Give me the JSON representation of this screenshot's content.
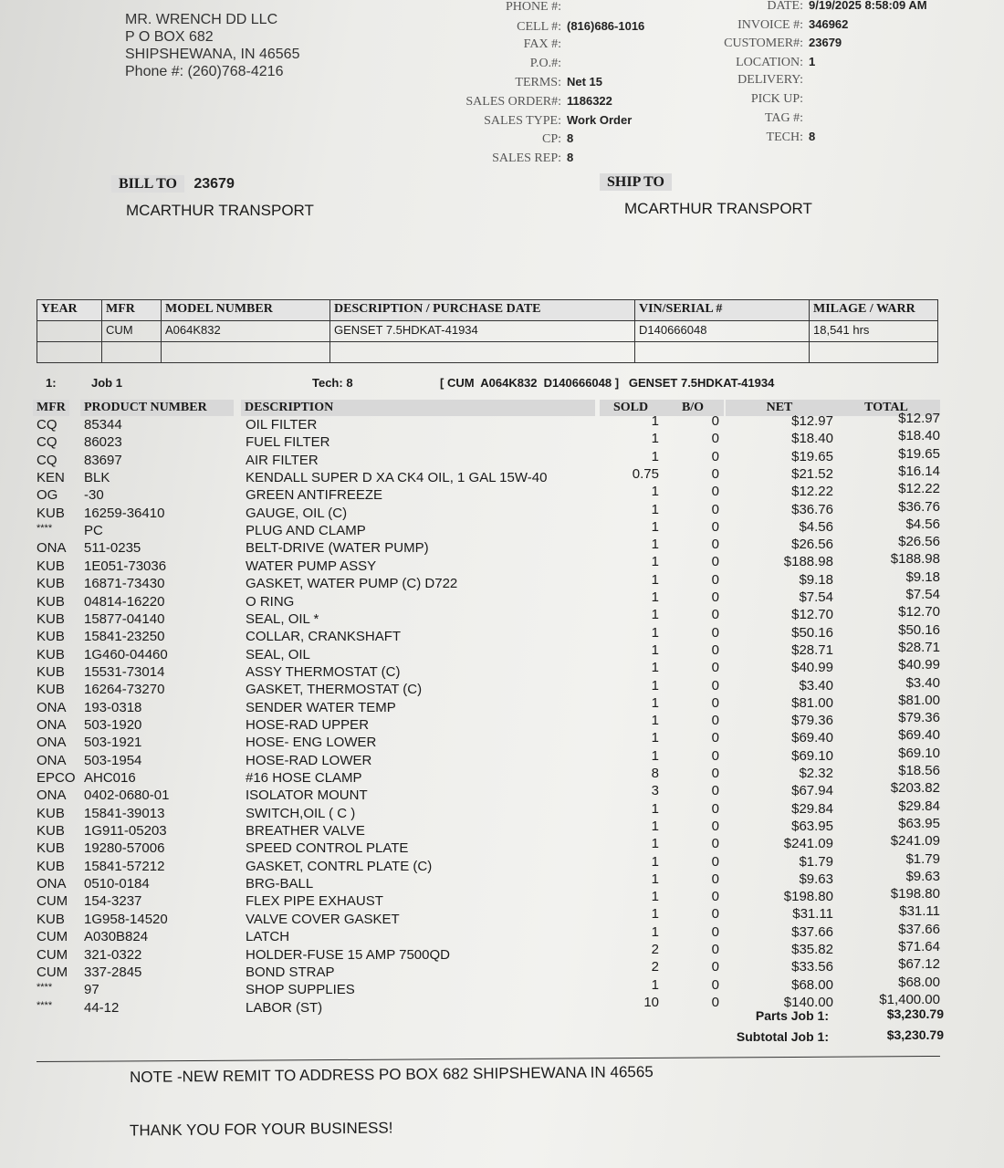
{
  "company": {
    "name": "MR. WRENCH DD LLC",
    "address1": "P O BOX 682",
    "address2": "SHIPSHEWANA, IN 46565",
    "phone": "Phone #: (260)768-4216"
  },
  "header_mid": [
    {
      "label": "PHONE #:",
      "value": ""
    },
    {
      "label": "CELL #:",
      "value": "(816)686-1016"
    },
    {
      "label": "FAX #:",
      "value": ""
    },
    {
      "label": "P.O.#:",
      "value": ""
    },
    {
      "label": "TERMS:",
      "value": "Net 15"
    },
    {
      "label": "SALES ORDER#:",
      "value": "1186322"
    },
    {
      "label": "SALES TYPE:",
      "value": "Work Order"
    },
    {
      "label": "CP:",
      "value": "8"
    },
    {
      "label": "SALES REP:",
      "value": "8"
    }
  ],
  "header_right": [
    {
      "label": "DATE:",
      "value": "9/19/2025 8:58:09 AM"
    },
    {
      "label": "INVOICE #:",
      "value": "346962"
    },
    {
      "label": "CUSTOMER#:",
      "value": "23679"
    },
    {
      "label": "LOCATION:",
      "value": "1"
    },
    {
      "label": "DELIVERY:",
      "value": ""
    },
    {
      "label": "PICK UP:",
      "value": ""
    },
    {
      "label": "TAG #:",
      "value": ""
    },
    {
      "label": "TECH:",
      "value": "8"
    }
  ],
  "bill_to": {
    "label": "BILL TO",
    "number": "23679",
    "name": "MCARTHUR TRANSPORT"
  },
  "ship_to": {
    "label": "SHIP TO",
    "name": "MCARTHUR TRANSPORT"
  },
  "unit_table": {
    "headers": [
      "YEAR",
      "MFR",
      "MODEL NUMBER",
      "DESCRIPTION / PURCHASE DATE",
      "VIN/SERIAL #",
      "MILAGE / WARR"
    ],
    "row": [
      "",
      "CUM",
      "A064K832",
      "GENSET 7.5HDKAT-41934",
      "D140666048",
      "18,541 hrs"
    ]
  },
  "job": {
    "num": "1:",
    "name": "Job 1",
    "tech": "Tech: 8",
    "unit": "[ CUM  A064K832  D140666048 ]   GENSET 7.5HDKAT-41934"
  },
  "columns": [
    "MFR",
    "PRODUCT NUMBER",
    "DESCRIPTION",
    "SOLD",
    "B/O",
    "NET",
    "TOTAL"
  ],
  "items": [
    {
      "mfr": "CQ",
      "part": "85344",
      "desc": "OIL FILTER",
      "sold": "1",
      "bo": "0",
      "net": "$12.97",
      "total": "$12.97"
    },
    {
      "mfr": "CQ",
      "part": "86023",
      "desc": "FUEL FILTER",
      "sold": "1",
      "bo": "0",
      "net": "$18.40",
      "total": "$18.40"
    },
    {
      "mfr": "CQ",
      "part": "83697",
      "desc": "AIR FILTER",
      "sold": "1",
      "bo": "0",
      "net": "$19.65",
      "total": "$19.65"
    },
    {
      "mfr": "KEN",
      "part": "BLK",
      "desc": "KENDALL SUPER D XA CK4 OIL, 1 GAL 15W-40",
      "sold": "0.75",
      "bo": "0",
      "net": "$21.52",
      "total": "$16.14"
    },
    {
      "mfr": "OG",
      "part": "-30",
      "desc": "GREEN ANTIFREEZE",
      "sold": "1",
      "bo": "0",
      "net": "$12.22",
      "total": "$12.22"
    },
    {
      "mfr": "KUB",
      "part": "16259-36410",
      "desc": "GAUGE, OIL (C)",
      "sold": "1",
      "bo": "0",
      "net": "$36.76",
      "total": "$36.76"
    },
    {
      "mfr": "****",
      "part": "PC",
      "desc": "PLUG AND CLAMP",
      "sold": "1",
      "bo": "0",
      "net": "$4.56",
      "total": "$4.56"
    },
    {
      "mfr": "ONA",
      "part": "511-0235",
      "desc": "BELT-DRIVE (WATER PUMP)",
      "sold": "1",
      "bo": "0",
      "net": "$26.56",
      "total": "$26.56"
    },
    {
      "mfr": "KUB",
      "part": "1E051-73036",
      "desc": "WATER PUMP ASSY",
      "sold": "1",
      "bo": "0",
      "net": "$188.98",
      "total": "$188.98"
    },
    {
      "mfr": "KUB",
      "part": "16871-73430",
      "desc": "GASKET, WATER PUMP (C) D722",
      "sold": "1",
      "bo": "0",
      "net": "$9.18",
      "total": "$9.18"
    },
    {
      "mfr": "KUB",
      "part": "04814-16220",
      "desc": "O RING",
      "sold": "1",
      "bo": "0",
      "net": "$7.54",
      "total": "$7.54"
    },
    {
      "mfr": "KUB",
      "part": "15877-04140",
      "desc": "SEAL, OIL   *",
      "sold": "1",
      "bo": "0",
      "net": "$12.70",
      "total": "$12.70"
    },
    {
      "mfr": "KUB",
      "part": "15841-23250",
      "desc": "COLLAR, CRANKSHAFT",
      "sold": "1",
      "bo": "0",
      "net": "$50.16",
      "total": "$50.16"
    },
    {
      "mfr": "KUB",
      "part": "1G460-04460",
      "desc": "SEAL, OIL",
      "sold": "1",
      "bo": "0",
      "net": "$28.71",
      "total": "$28.71"
    },
    {
      "mfr": "KUB",
      "part": "15531-73014",
      "desc": "ASSY THERMOSTAT (C)",
      "sold": "1",
      "bo": "0",
      "net": "$40.99",
      "total": "$40.99"
    },
    {
      "mfr": "KUB",
      "part": "16264-73270",
      "desc": "GASKET, THERMOSTAT (C)",
      "sold": "1",
      "bo": "0",
      "net": "$3.40",
      "total": "$3.40"
    },
    {
      "mfr": "ONA",
      "part": "193-0318",
      "desc": "SENDER WATER TEMP",
      "sold": "1",
      "bo": "0",
      "net": "$81.00",
      "total": "$81.00"
    },
    {
      "mfr": "ONA",
      "part": "503-1920",
      "desc": "HOSE-RAD UPPER",
      "sold": "1",
      "bo": "0",
      "net": "$79.36",
      "total": "$79.36"
    },
    {
      "mfr": "ONA",
      "part": "503-1921",
      "desc": "HOSE- ENG LOWER",
      "sold": "1",
      "bo": "0",
      "net": "$69.40",
      "total": "$69.40"
    },
    {
      "mfr": "ONA",
      "part": "503-1954",
      "desc": "HOSE-RAD LOWER",
      "sold": "1",
      "bo": "0",
      "net": "$69.10",
      "total": "$69.10"
    },
    {
      "mfr": "EPCO",
      "part": "AHC016",
      "desc": "#16 HOSE CLAMP",
      "sold": "8",
      "bo": "0",
      "net": "$2.32",
      "total": "$18.56"
    },
    {
      "mfr": "ONA",
      "part": "0402-0680-01",
      "desc": "ISOLATOR MOUNT",
      "sold": "3",
      "bo": "0",
      "net": "$67.94",
      "total": "$203.82"
    },
    {
      "mfr": "KUB",
      "part": "15841-39013",
      "desc": "SWITCH,OIL ( C )",
      "sold": "1",
      "bo": "0",
      "net": "$29.84",
      "total": "$29.84"
    },
    {
      "mfr": "KUB",
      "part": "1G911-05203",
      "desc": "BREATHER VALVE",
      "sold": "1",
      "bo": "0",
      "net": "$63.95",
      "total": "$63.95"
    },
    {
      "mfr": "KUB",
      "part": "19280-57006",
      "desc": "SPEED CONTROL PLATE",
      "sold": "1",
      "bo": "0",
      "net": "$241.09",
      "total": "$241.09"
    },
    {
      "mfr": "KUB",
      "part": "15841-57212",
      "desc": "GASKET, CONTRL PLATE (C)",
      "sold": "1",
      "bo": "0",
      "net": "$1.79",
      "total": "$1.79"
    },
    {
      "mfr": "ONA",
      "part": "0510-0184",
      "desc": "BRG-BALL",
      "sold": "1",
      "bo": "0",
      "net": "$9.63",
      "total": "$9.63"
    },
    {
      "mfr": "CUM",
      "part": "154-3237",
      "desc": "FLEX PIPE EXHAUST",
      "sold": "1",
      "bo": "0",
      "net": "$198.80",
      "total": "$198.80"
    },
    {
      "mfr": "KUB",
      "part": "1G958-14520",
      "desc": "VALVE COVER GASKET",
      "sold": "1",
      "bo": "0",
      "net": "$31.11",
      "total": "$31.11"
    },
    {
      "mfr": "CUM",
      "part": "A030B824",
      "desc": "LATCH",
      "sold": "1",
      "bo": "0",
      "net": "$37.66",
      "total": "$37.66"
    },
    {
      "mfr": "CUM",
      "part": "321-0322",
      "desc": "HOLDER-FUSE 15 AMP  7500QD",
      "sold": "2",
      "bo": "0",
      "net": "$35.82",
      "total": "$71.64"
    },
    {
      "mfr": "CUM",
      "part": "337-2845",
      "desc": "BOND STRAP",
      "sold": "2",
      "bo": "0",
      "net": "$33.56",
      "total": "$67.12"
    },
    {
      "mfr": "****",
      "part": "97",
      "desc": "SHOP SUPPLIES",
      "sold": "1",
      "bo": "0",
      "net": "$68.00",
      "total": "$68.00"
    },
    {
      "mfr": "****",
      "part": "44-12",
      "desc": "LABOR (ST)",
      "sold": "10",
      "bo": "0",
      "net": "$140.00",
      "total": "$1,400.00"
    }
  ],
  "totals": {
    "parts_label": "Parts Job 1:",
    "parts_value": "$3,230.79",
    "subtotal_label": "Subtotal Job 1:",
    "subtotal_value": "$3,230.79"
  },
  "footer": {
    "note": "NOTE -NEW REMIT TO ADDRESS  PO BOX 682 SHIPSHEWANA IN 46565",
    "thanks": "THANK YOU FOR YOUR BUSINESS!"
  }
}
